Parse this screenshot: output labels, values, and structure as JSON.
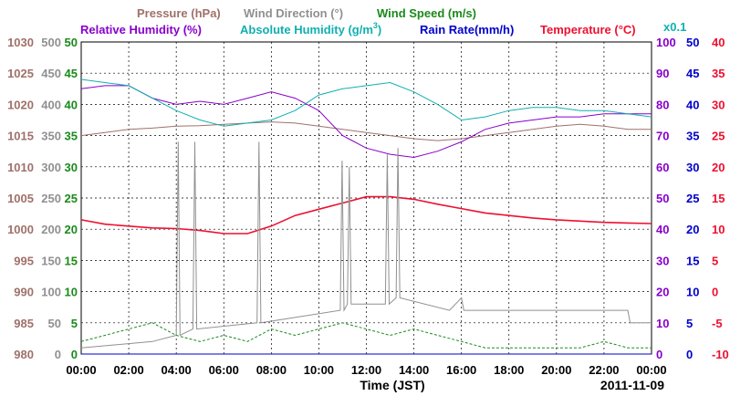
{
  "chart_data": {
    "type": "line",
    "legend_row1": [
      {
        "label": "Pressure (hPa)",
        "color": "#a0706a"
      },
      {
        "label": "Wind Direction (°)",
        "color": "#909090"
      },
      {
        "label": "Wind Speed (m/s)",
        "color": "#1a8a1a"
      }
    ],
    "legend_row2": [
      {
        "label": "Relative Humidity (%)",
        "color": "#8800cc"
      },
      {
        "label": "Absolute Humidity (g/m",
        "sup": "3",
        "close": ")",
        "color": "#10b0b0"
      },
      {
        "label": "Rain Rate(mm/h)",
        "color": "#0000cc"
      },
      {
        "label": "Temperature (°C)",
        "color": "#ee1030"
      }
    ],
    "ah_scale_label": "x0.1",
    "xlabel": "Time (JST)",
    "date": "2011-11-09",
    "x_ticks": [
      "00:00",
      "02:00",
      "04:00",
      "06:00",
      "08:00",
      "10:00",
      "12:00",
      "14:00",
      "16:00",
      "18:00",
      "20:00",
      "22:00",
      "00:00"
    ],
    "x_range_hours": [
      0,
      24
    ],
    "axes": {
      "pressure": {
        "color": "#a0706a",
        "ticks": [
          980,
          985,
          990,
          995,
          1000,
          1005,
          1010,
          1015,
          1020,
          1025,
          1030
        ],
        "range": [
          980,
          1030
        ]
      },
      "wind_dir": {
        "color": "#909090",
        "ticks": [
          0,
          50,
          100,
          150,
          200,
          250,
          300,
          350,
          400,
          450,
          500
        ],
        "range": [
          0,
          500
        ]
      },
      "wind_speed": {
        "color": "#1a8a1a",
        "ticks": [
          0,
          5,
          10,
          15,
          20,
          25,
          30,
          35,
          40,
          45,
          50
        ],
        "range": [
          0,
          50
        ]
      },
      "rel_humidity": {
        "color": "#8800cc",
        "ticks": [
          0,
          10,
          20,
          30,
          40,
          50,
          60,
          70,
          80,
          90,
          100
        ],
        "range": [
          0,
          100
        ]
      },
      "rain_rate": {
        "color": "#0000cc",
        "ticks": [
          0,
          5,
          10,
          15,
          20,
          25,
          30,
          35,
          40,
          45,
          50
        ],
        "range": [
          0,
          50
        ]
      },
      "temperature": {
        "color": "#ee1030",
        "ticks": [
          -10,
          -5,
          0,
          5,
          10,
          15,
          20,
          25,
          30,
          35,
          40
        ],
        "range": [
          -10,
          40
        ]
      }
    },
    "series": [
      {
        "name": "Pressure",
        "axis": "pressure",
        "color": "#a0706a",
        "x": [
          0,
          1,
          2,
          3,
          4,
          5,
          6,
          7,
          8,
          9,
          10,
          11,
          12,
          13,
          14,
          15,
          16,
          17,
          18,
          19,
          20,
          21,
          22,
          23,
          24
        ],
        "y": [
          1015.0,
          1015.5,
          1016.0,
          1016.2,
          1016.5,
          1016.6,
          1016.8,
          1017.0,
          1017.2,
          1017.0,
          1016.5,
          1016.0,
          1015.5,
          1015.0,
          1014.5,
          1014.2,
          1014.5,
          1015.0,
          1015.5,
          1016.0,
          1016.5,
          1016.8,
          1016.5,
          1016.0,
          1016.0
        ]
      },
      {
        "name": "Temperature",
        "axis": "temperature",
        "color": "#ee1030",
        "x": [
          0,
          1,
          2,
          3,
          4,
          5,
          6,
          7,
          8,
          9,
          10,
          11,
          12,
          13,
          14,
          15,
          16,
          17,
          18,
          19,
          20,
          21,
          22,
          23,
          24
        ],
        "y": [
          11.5,
          10.8,
          10.5,
          10.2,
          10.1,
          9.8,
          9.3,
          9.3,
          10.5,
          12.2,
          13.2,
          14.2,
          15.2,
          15.2,
          14.8,
          14.0,
          13.3,
          12.6,
          12.2,
          11.8,
          11.5,
          11.3,
          11.1,
          11.0,
          10.9
        ]
      },
      {
        "name": "Relative Humidity",
        "axis": "rel_humidity",
        "color": "#8800cc",
        "x": [
          0,
          1,
          2,
          3,
          4,
          5,
          6,
          7,
          8,
          9,
          10,
          11,
          12,
          13,
          14,
          15,
          16,
          17,
          18,
          19,
          20,
          21,
          22,
          23,
          24
        ],
        "y": [
          85,
          86,
          86,
          82,
          80,
          81,
          80,
          82,
          84,
          82,
          78,
          70,
          66,
          64,
          63,
          65,
          68,
          72,
          74,
          75,
          76,
          76,
          77,
          77,
          77
        ]
      },
      {
        "name": "Absolute Humidity",
        "axis": "rel_humidity",
        "color": "#10b0b0",
        "x": [
          0,
          1,
          2,
          3,
          4,
          5,
          6,
          7,
          8,
          9,
          10,
          11,
          12,
          13,
          14,
          15,
          16,
          17,
          18,
          19,
          20,
          21,
          22,
          23,
          24
        ],
        "y": [
          88,
          87,
          86,
          82,
          78,
          75,
          73,
          74,
          75,
          78,
          83,
          85,
          86,
          87,
          84,
          80,
          75,
          76,
          78,
          79,
          79,
          78,
          78,
          77,
          76
        ]
      },
      {
        "name": "Wind Direction",
        "axis": "wind_dir",
        "color": "#909090",
        "x": [
          0,
          3.0,
          4.0,
          4.08,
          4.16,
          4.7,
          4.78,
          4.86,
          7.4,
          7.48,
          7.56,
          10.9,
          10.98,
          11.06,
          11.2,
          11.28,
          11.36,
          12.8,
          12.88,
          12.96,
          13.25,
          13.33,
          13.41,
          15.5,
          16.0,
          16.1,
          16.2,
          23.0,
          23.1,
          24
        ],
        "y": [
          10,
          20,
          30,
          340,
          30,
          40,
          340,
          40,
          50,
          340,
          50,
          70,
          310,
          70,
          80,
          300,
          80,
          80,
          320,
          80,
          90,
          330,
          90,
          70,
          90,
          70,
          70,
          70,
          50,
          50
        ]
      },
      {
        "name": "Wind Speed",
        "axis": "wind_speed",
        "color": "#1a8a1a",
        "x": [
          0,
          1,
          2,
          3,
          4,
          5,
          6,
          7,
          8,
          9,
          10,
          11,
          12,
          13,
          14,
          15,
          16,
          17,
          18,
          19,
          20,
          21,
          22,
          23,
          24
        ],
        "y": [
          2,
          3,
          4,
          5,
          3,
          2,
          3,
          2,
          4,
          3,
          4,
          5,
          4,
          3,
          4,
          3,
          2,
          1,
          1,
          1,
          1,
          1,
          2,
          1,
          1
        ]
      },
      {
        "name": "Rain Rate",
        "axis": "rain_rate",
        "color": "#0000cc",
        "x": [
          0,
          24
        ],
        "y": [
          0,
          0
        ]
      }
    ]
  }
}
